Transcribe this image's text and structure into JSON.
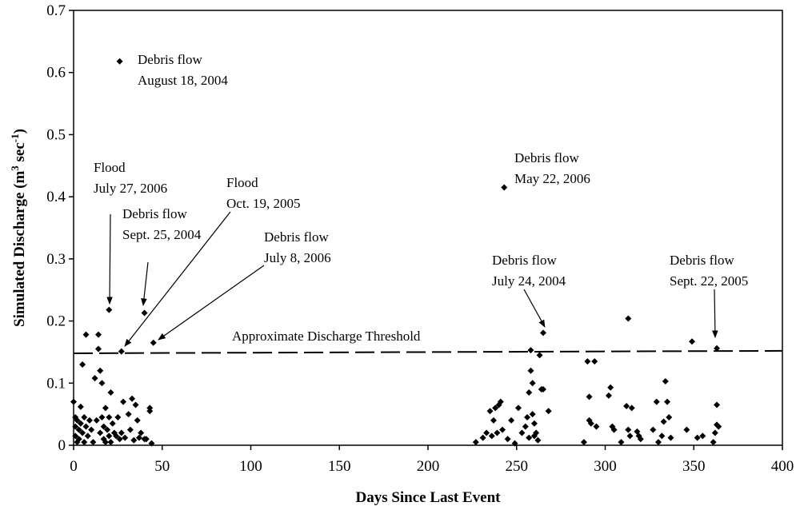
{
  "chart_data": {
    "type": "scatter",
    "xlabel": "Days Since Last Event",
    "ylabel": [
      "Simulated Discharge (m",
      "3",
      " sec",
      "-1",
      ")"
    ],
    "xlim": [
      0,
      400
    ],
    "ylim": [
      0,
      0.7
    ],
    "xticks": [
      0,
      50,
      100,
      150,
      200,
      250,
      300,
      350,
      400
    ],
    "yticks": [
      0,
      0.1,
      0.2,
      0.3,
      0.4,
      0.5,
      0.6,
      0.7
    ],
    "color": "#000000",
    "x": [
      26,
      20,
      40,
      27,
      45,
      243,
      265,
      363,
      313,
      349,
      0,
      1,
      1,
      1,
      2,
      2,
      3,
      3,
      4,
      4,
      5,
      5,
      6,
      6,
      7,
      7,
      8,
      9,
      10,
      11,
      12,
      13,
      14,
      14,
      15,
      15,
      16,
      16,
      17,
      17,
      18,
      18,
      19,
      20,
      20,
      21,
      21,
      22,
      23,
      24,
      25,
      26,
      27,
      28,
      29,
      31,
      32,
      33,
      34,
      35,
      36,
      37,
      38,
      40,
      41,
      43,
      43,
      44,
      227,
      231,
      233,
      235,
      236,
      237,
      238,
      239,
      240,
      241,
      242,
      245,
      247,
      249,
      251,
      253,
      255,
      256,
      257,
      257,
      258,
      258,
      259,
      259,
      260,
      260,
      261,
      262,
      263,
      264,
      265,
      268,
      288,
      290,
      291,
      291,
      292,
      294,
      295,
      302,
      303,
      304,
      305,
      309,
      312,
      313,
      314,
      315,
      318,
      319,
      320,
      327,
      329,
      330,
      332,
      333,
      334,
      335,
      336,
      337,
      346,
      352,
      355,
      361,
      362,
      363,
      363,
      364
    ],
    "values": [
      0.618,
      0.218,
      0.213,
      0.151,
      0.165,
      0.415,
      0.181,
      0.156,
      0.204,
      0.167,
      0.07,
      0.045,
      0.03,
      0.015,
      0.005,
      0.04,
      0.025,
      0.01,
      0.062,
      0.035,
      0.13,
      0.02,
      0.045,
      0.005,
      0.178,
      0.03,
      0.015,
      0.04,
      0.025,
      0.005,
      0.108,
      0.04,
      0.155,
      0.178,
      0.12,
      0.02,
      0.1,
      0.045,
      0.03,
      0.01,
      0.06,
      0.005,
      0.025,
      0.045,
      0.015,
      0.085,
      0.005,
      0.035,
      0.02,
      0.015,
      0.045,
      0.01,
      0.02,
      0.07,
      0.012,
      0.05,
      0.025,
      0.075,
      0.008,
      0.065,
      0.04,
      0.012,
      0.02,
      0.01,
      0.01,
      0.055,
      0.06,
      0.003,
      0.005,
      0.012,
      0.02,
      0.055,
      0.015,
      0.04,
      0.06,
      0.02,
      0.065,
      0.07,
      0.025,
      0.01,
      0.04,
      0.003,
      0.06,
      0.02,
      0.03,
      0.045,
      0.085,
      0.012,
      0.153,
      0.12,
      0.1,
      0.05,
      0.015,
      0.035,
      0.02,
      0.008,
      0.145,
      0.09,
      0.09,
      0.055,
      0.005,
      0.135,
      0.078,
      0.04,
      0.035,
      0.135,
      0.03,
      0.08,
      0.093,
      0.03,
      0.025,
      0.005,
      0.063,
      0.025,
      0.015,
      0.06,
      0.022,
      0.015,
      0.01,
      0.025,
      0.07,
      0.005,
      0.015,
      0.038,
      0.103,
      0.07,
      0.045,
      0.012,
      0.025,
      0.012,
      0.015,
      0.005,
      0.02,
      0.065,
      0.033,
      0.03
    ],
    "threshold": {
      "label": "Approximate Discharge Threshold",
      "x": [
        0,
        400
      ],
      "y": [
        0.148,
        0.152
      ]
    },
    "annotations": [
      [
        "Debris flow",
        "August 18, 2004"
      ],
      [
        "Flood",
        "July 27, 2006"
      ],
      [
        "Debris flow",
        "Sept. 25, 2004"
      ],
      [
        "Flood",
        "Oct. 19, 2005"
      ],
      [
        "Debris flow",
        "July 8, 2006"
      ],
      [
        "Debris flow",
        "May 22, 2006"
      ],
      [
        "Debris flow",
        "July 24, 2004"
      ],
      [
        "Debris flow",
        "Sept. 22, 2005"
      ]
    ]
  }
}
